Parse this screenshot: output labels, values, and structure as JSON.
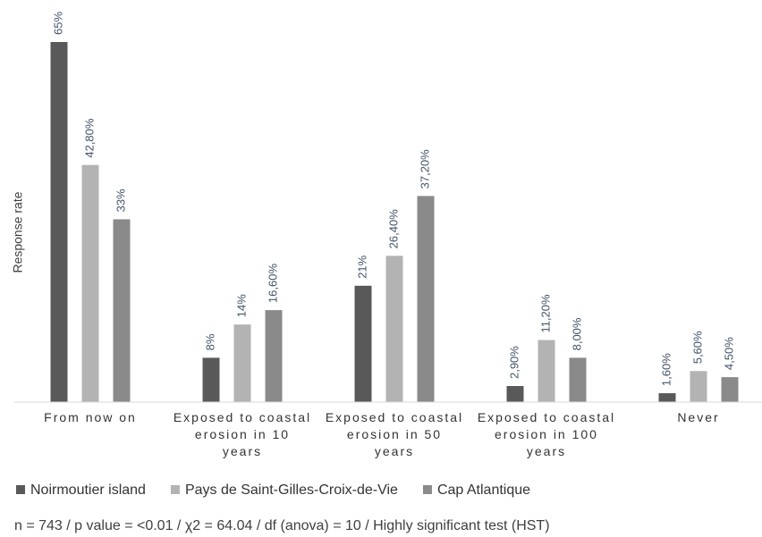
{
  "chart_data": {
    "type": "bar",
    "y_label": "Response rate",
    "categories": [
      "From now on",
      "Exposed to coastal erosion in 10 years",
      "Exposed to coastal erosion in 50 years",
      "Exposed to coastal erosion in 100 years",
      "Never"
    ],
    "series": [
      {
        "name": "Noirmoutier island",
        "color": "#595959",
        "values": [
          65,
          8,
          21,
          2.9,
          1.6
        ],
        "value_labels": [
          "65%",
          "8%",
          "21%",
          "2,90%",
          "1,60%"
        ]
      },
      {
        "name": "Pays de Saint-Gilles-Croix-de-Vie",
        "color": "#b3b3b3",
        "values": [
          42.8,
          14,
          26.4,
          11.2,
          5.6
        ],
        "value_labels": [
          "42,80%",
          "14%",
          "26,40%",
          "11,20%",
          "5,60%"
        ]
      },
      {
        "name": "Cap Atlantique",
        "color": "#8a8a8a",
        "values": [
          33,
          16.6,
          37.2,
          8.0,
          4.5
        ],
        "value_labels": [
          "33%",
          "16,60%",
          "37,20%",
          "8,00%",
          "4,50%"
        ]
      }
    ],
    "note": "n = 743 / p value = <0.01 / χ2 = 64.04 / df (anova) = 10 / Highly significant test (HST)"
  }
}
